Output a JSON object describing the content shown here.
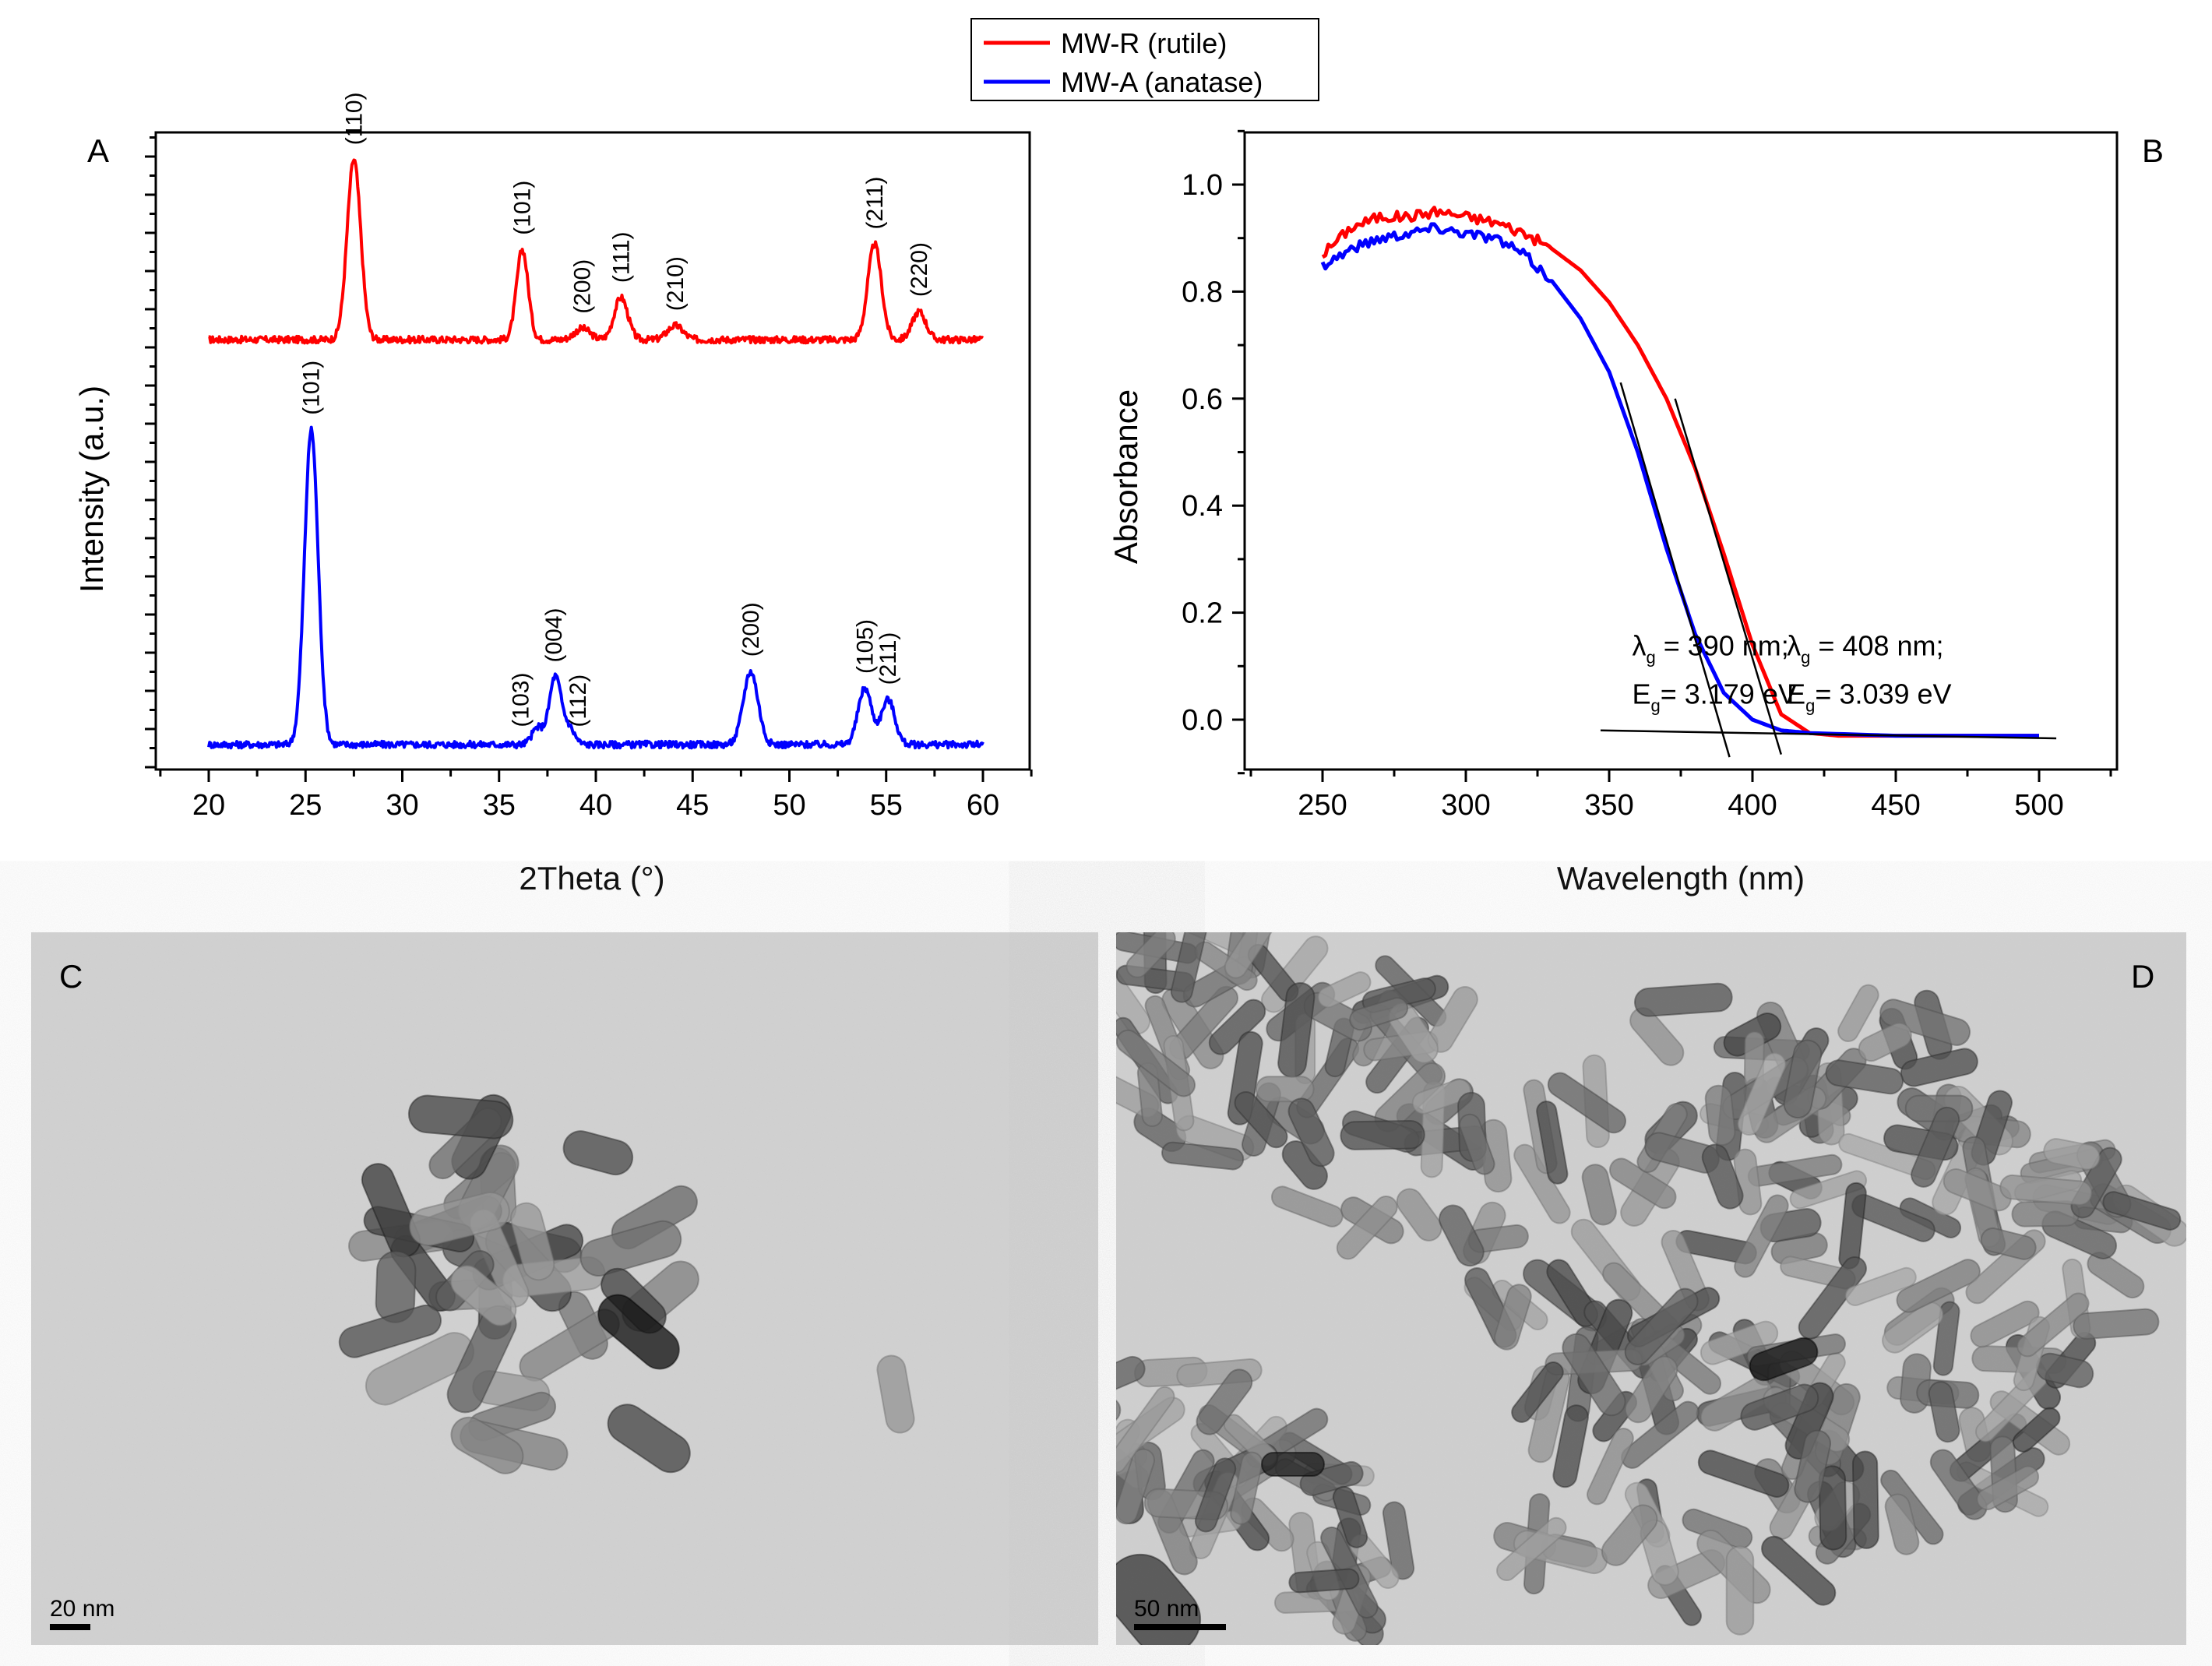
{
  "legend": {
    "items": [
      {
        "label": "MW-R (rutile)",
        "color": "#ff0000"
      },
      {
        "label": "MW-A (anatase)",
        "color": "#0000ff"
      }
    ]
  },
  "colors": {
    "rutile": "#ff0000",
    "anatase": "#0000ff",
    "tem_background": "#d2d2d2"
  },
  "panels": {
    "A": {
      "letter": "A"
    },
    "B": {
      "letter": "B"
    },
    "C": {
      "letter": "C",
      "scale_bar_label": "20 nm"
    },
    "D": {
      "letter": "D",
      "scale_bar_label": "50 nm"
    }
  },
  "chart_data": [
    {
      "panel": "A",
      "type": "line",
      "title": "",
      "xlabel": "2Theta (°)",
      "ylabel": "Intensity (a.u.)",
      "xlim": [
        17.5,
        62.5
      ],
      "ylim": [
        -0.05,
        1.2
      ],
      "xticks": [
        20,
        25,
        30,
        35,
        40,
        45,
        50,
        55,
        60
      ],
      "yticks_labeled": false,
      "series": [
        {
          "name": "MW-R (rutile)",
          "color": "#ff0000",
          "baseline": 0.72,
          "peaks": [
            {
              "x": 27.5,
              "height": 0.32,
              "width": 0.35,
              "label": "(110)"
            },
            {
              "x": 36.2,
              "height": 0.16,
              "width": 0.3,
              "label": "(101)"
            },
            {
              "x": 39.3,
              "height": 0.02,
              "width": 0.4,
              "label": "(200)"
            },
            {
              "x": 41.3,
              "height": 0.075,
              "width": 0.35,
              "label": "(111)"
            },
            {
              "x": 44.1,
              "height": 0.025,
              "width": 0.4,
              "label": "(210)"
            },
            {
              "x": 54.4,
              "height": 0.17,
              "width": 0.35,
              "label": "(211)"
            },
            {
              "x": 56.7,
              "height": 0.05,
              "width": 0.35,
              "label": "(220)"
            }
          ]
        },
        {
          "name": "MW-A (anatase)",
          "color": "#0000ff",
          "baseline": 0.0,
          "peaks": [
            {
              "x": 25.3,
              "height": 0.56,
              "width": 0.35,
              "label": "(101)"
            },
            {
              "x": 37.0,
              "height": 0.03,
              "width": 0.3,
              "label": "(103)"
            },
            {
              "x": 37.9,
              "height": 0.12,
              "width": 0.3,
              "label": "(004)"
            },
            {
              "x": 38.6,
              "height": 0.03,
              "width": 0.3,
              "label": "(112)"
            },
            {
              "x": 48.0,
              "height": 0.13,
              "width": 0.38,
              "label": "(200)"
            },
            {
              "x": 53.9,
              "height": 0.1,
              "width": 0.35,
              "label": "(105)"
            },
            {
              "x": 55.1,
              "height": 0.08,
              "width": 0.35,
              "label": "(211)"
            }
          ]
        }
      ]
    },
    {
      "panel": "B",
      "type": "line",
      "title": "",
      "xlabel": "Wavelength (nm)",
      "ylabel": "Absorbance",
      "xlim": [
        222,
        528
      ],
      "ylim": [
        -0.1,
        1.1
      ],
      "xticks": [
        250,
        300,
        350,
        400,
        450,
        500
      ],
      "yticks": [
        0.0,
        0.2,
        0.4,
        0.6,
        0.8,
        1.0
      ],
      "ytick_labels": [
        "0.0",
        "0.2",
        "0.4",
        "0.6",
        "0.8",
        "1.0"
      ],
      "series": [
        {
          "name": "MW-R (rutile)",
          "color": "#ff0000",
          "x": [
            250,
            260,
            270,
            280,
            290,
            300,
            310,
            320,
            330,
            340,
            350,
            360,
            370,
            380,
            390,
            400,
            410,
            420,
            430,
            450,
            500
          ],
          "y": [
            0.87,
            0.92,
            0.94,
            0.94,
            0.95,
            0.94,
            0.93,
            0.91,
            0.88,
            0.84,
            0.78,
            0.7,
            0.6,
            0.47,
            0.31,
            0.14,
            0.01,
            -0.025,
            -0.03,
            -0.03,
            -0.03
          ]
        },
        {
          "name": "MW-A (anatase)",
          "color": "#0000ff",
          "x": [
            250,
            260,
            270,
            280,
            290,
            300,
            310,
            320,
            330,
            340,
            350,
            360,
            370,
            380,
            390,
            400,
            410,
            420,
            450,
            500
          ],
          "y": [
            0.85,
            0.88,
            0.9,
            0.91,
            0.92,
            0.91,
            0.9,
            0.87,
            0.82,
            0.75,
            0.65,
            0.5,
            0.32,
            0.16,
            0.05,
            0.0,
            -0.02,
            -0.025,
            -0.03,
            -0.03
          ]
        }
      ],
      "tangent_lines": [
        {
          "name": "anatase-edge",
          "x1": 354,
          "y1": 0.63,
          "x2": 392,
          "y2": -0.07
        },
        {
          "name": "rutile-edge",
          "x1": 373,
          "y1": 0.6,
          "x2": 410,
          "y2": -0.065
        },
        {
          "name": "baseline",
          "x1": 347,
          "y1": -0.02,
          "x2": 506,
          "y2": -0.035
        }
      ],
      "annotations": [
        {
          "symbol": "λ",
          "sub": "g",
          "text": " = 390 nm;",
          "x": 358,
          "y": 0.12,
          "anchor": "start"
        },
        {
          "symbol": "E",
          "sub": "g",
          "text": "= 3.179 eV",
          "x": 358,
          "y": 0.03,
          "anchor": "start"
        },
        {
          "symbol": "λ",
          "sub": "g",
          "text": " = 408 nm;",
          "x": 412,
          "y": 0.12,
          "anchor": "start"
        },
        {
          "symbol": "E",
          "sub": "g",
          "text": "= 3.039 eV",
          "x": 412,
          "y": 0.03,
          "anchor": "start"
        }
      ]
    }
  ]
}
